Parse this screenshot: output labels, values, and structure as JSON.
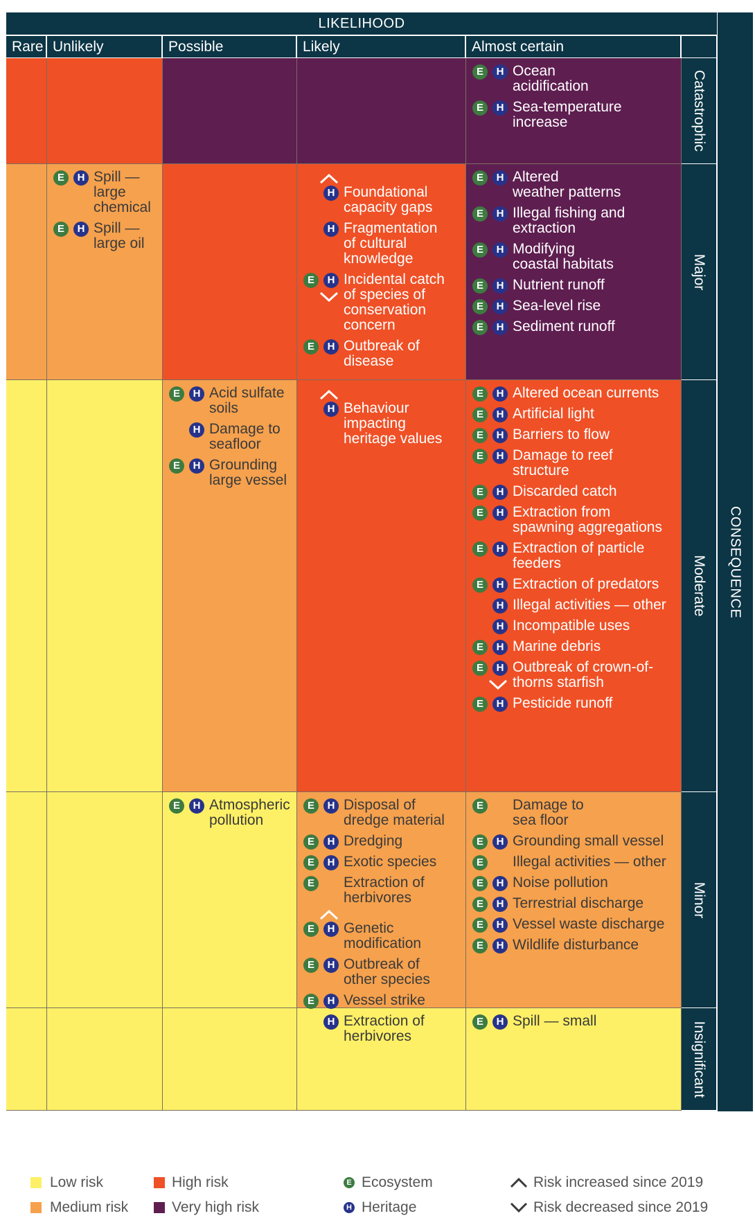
{
  "header": {
    "likelihood": "LIKELIHOOD",
    "consequence": "CONSEQUENCE",
    "columns": [
      "Rare",
      "Unlikely",
      "Possible",
      "Likely",
      "Almost certain"
    ],
    "rows": [
      "Catastrophic",
      "Major",
      "Moderate",
      "Minor",
      "Insignificant"
    ]
  },
  "colors": {
    "low": "#fdf066",
    "medium": "#f6a14d",
    "high": "#ef5026",
    "very_high": "#5e1e50",
    "header": "#0c3545",
    "ecosystem": "#3d7b40",
    "heritage": "#27338a"
  },
  "cell_risk": [
    [
      "high",
      "high",
      "very_high",
      "very_high",
      "very_high"
    ],
    [
      "medium",
      "medium",
      "high",
      "high",
      "very_high"
    ],
    [
      "low",
      "low",
      "medium",
      "high",
      "high"
    ],
    [
      "low",
      "low",
      "low",
      "medium",
      "medium"
    ],
    [
      "low",
      "low",
      "low",
      "low",
      "low"
    ]
  ],
  "cells": [
    {
      "row": 0,
      "col": 4,
      "items": [
        {
          "label": [
            "Ocean",
            "acidification"
          ],
          "e": true,
          "h": true
        },
        {
          "label": [
            "Sea-temperature",
            "increase"
          ],
          "e": true,
          "h": true
        }
      ]
    },
    {
      "row": 1,
      "col": 1,
      "items": [
        {
          "label": [
            "Spill —",
            "large",
            "chemical"
          ],
          "e": true,
          "h": true
        },
        {
          "label": [
            "Spill —",
            "large oil"
          ],
          "e": true,
          "h": true
        }
      ]
    },
    {
      "row": 1,
      "col": 3,
      "items": [
        {
          "label": [
            "Foundational",
            "capacity gaps"
          ],
          "e": false,
          "h": true,
          "trend": "up"
        },
        {
          "label": [
            "Fragmentation",
            "of cultural",
            "knowledge"
          ],
          "e": false,
          "h": true
        },
        {
          "label": [
            "Incidental catch",
            "of species of",
            "conservation",
            "concern"
          ],
          "e": true,
          "h": true,
          "trend": "down"
        },
        {
          "label": [
            "Outbreak of",
            "disease"
          ],
          "e": true,
          "h": true
        }
      ]
    },
    {
      "row": 1,
      "col": 4,
      "items": [
        {
          "label": [
            "Altered",
            "weather patterns"
          ],
          "e": true,
          "h": true
        },
        {
          "label": [
            "Illegal fishing and",
            "extraction"
          ],
          "e": true,
          "h": true
        },
        {
          "label": [
            "Modifying",
            "coastal habitats"
          ],
          "e": true,
          "h": true
        },
        {
          "label": [
            "Nutrient runoff"
          ],
          "e": true,
          "h": true
        },
        {
          "label": [
            "Sea-level rise"
          ],
          "e": true,
          "h": true
        },
        {
          "label": [
            "Sediment runoff"
          ],
          "e": true,
          "h": true
        }
      ]
    },
    {
      "row": 2,
      "col": 2,
      "items": [
        {
          "label": [
            "Acid sulfate",
            "soils"
          ],
          "e": true,
          "h": true
        },
        {
          "label": [
            "Damage to",
            "seafloor"
          ],
          "e": false,
          "h": true
        },
        {
          "label": [
            "Grounding",
            "large vessel"
          ],
          "e": true,
          "h": true
        }
      ]
    },
    {
      "row": 2,
      "col": 3,
      "items": [
        {
          "label": [
            "Behaviour",
            "impacting",
            "heritage values"
          ],
          "e": false,
          "h": true,
          "trend": "up"
        }
      ]
    },
    {
      "row": 2,
      "col": 4,
      "items": [
        {
          "label": [
            "Altered ocean currents"
          ],
          "e": true,
          "h": true
        },
        {
          "label": [
            "Artificial light"
          ],
          "e": true,
          "h": true
        },
        {
          "label": [
            "Barriers to flow"
          ],
          "e": true,
          "h": true
        },
        {
          "label": [
            "Damage to reef",
            "structure"
          ],
          "e": true,
          "h": true
        },
        {
          "label": [
            "Discarded catch"
          ],
          "e": true,
          "h": true
        },
        {
          "label": [
            "Extraction from",
            "spawning aggregations"
          ],
          "e": true,
          "h": true
        },
        {
          "label": [
            "Extraction of particle",
            "feeders"
          ],
          "e": true,
          "h": true
        },
        {
          "label": [
            "Extraction of predators"
          ],
          "e": true,
          "h": true
        },
        {
          "label": [
            "Illegal activities — other"
          ],
          "e": false,
          "h": true
        },
        {
          "label": [
            "Incompatible uses"
          ],
          "e": false,
          "h": true
        },
        {
          "label": [
            "Marine debris"
          ],
          "e": true,
          "h": true
        },
        {
          "label": [
            "Outbreak of crown-of-",
            "thorns starfish"
          ],
          "e": true,
          "h": true,
          "trend": "down"
        },
        {
          "label": [
            "Pesticide runoff"
          ],
          "e": true,
          "h": true
        }
      ]
    },
    {
      "row": 3,
      "col": 2,
      "items": [
        {
          "label": [
            "Atmospheric",
            "pollution"
          ],
          "e": true,
          "h": true
        }
      ]
    },
    {
      "row": 3,
      "col": 3,
      "items": [
        {
          "label": [
            "Disposal of",
            "dredge material"
          ],
          "e": true,
          "h": true
        },
        {
          "label": [
            "Dredging"
          ],
          "e": true,
          "h": true
        },
        {
          "label": [
            "Exotic species"
          ],
          "e": true,
          "h": true
        },
        {
          "label": [
            "Extraction of",
            "herbivores"
          ],
          "e": true,
          "h": false
        },
        {
          "label": [
            "Genetic",
            "modification"
          ],
          "e": true,
          "h": true,
          "trend": "up"
        },
        {
          "label": [
            "Outbreak of",
            "other species"
          ],
          "e": true,
          "h": true
        },
        {
          "label": [
            "Vessel strike"
          ],
          "e": true,
          "h": true
        }
      ]
    },
    {
      "row": 3,
      "col": 4,
      "items": [
        {
          "label": [
            "Damage to",
            "sea floor"
          ],
          "e": true,
          "h": false
        },
        {
          "label": [
            "Grounding small vessel"
          ],
          "e": true,
          "h": true
        },
        {
          "label": [
            "Illegal activities — other"
          ],
          "e": true,
          "h": false
        },
        {
          "label": [
            "Noise pollution"
          ],
          "e": true,
          "h": true
        },
        {
          "label": [
            "Terrestrial discharge"
          ],
          "e": true,
          "h": true
        },
        {
          "label": [
            "Vessel waste discharge"
          ],
          "e": true,
          "h": true
        },
        {
          "label": [
            "Wildlife disturbance"
          ],
          "e": true,
          "h": true
        }
      ]
    },
    {
      "row": 4,
      "col": 3,
      "items": [
        {
          "label": [
            "Extraction of",
            "herbivores"
          ],
          "e": false,
          "h": true
        }
      ]
    },
    {
      "row": 4,
      "col": 4,
      "items": [
        {
          "label": [
            "Spill — small"
          ],
          "e": true,
          "h": true
        }
      ]
    }
  ],
  "badges": {
    "ecosystem": "E",
    "heritage": "H"
  },
  "legend": {
    "low": "Low risk",
    "medium": "Medium risk",
    "high": "High risk",
    "very_high": "Very high risk",
    "ecosystem": "Ecosystem",
    "heritage": "Heritage",
    "increased": "Risk increased since 2019",
    "decreased": "Risk decreased since 2019"
  }
}
